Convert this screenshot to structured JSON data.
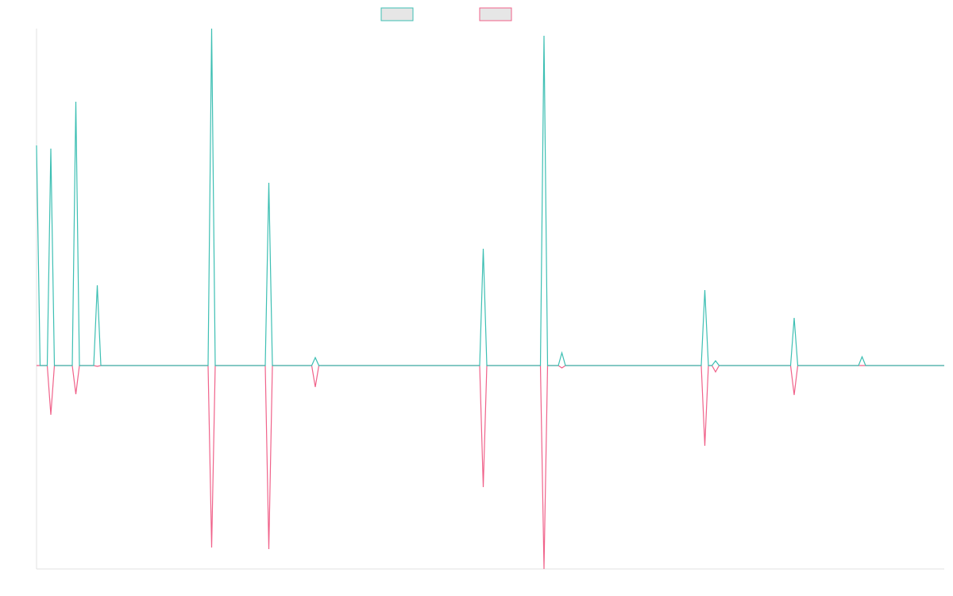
{
  "chart_data": {
    "type": "line",
    "ylim": [
      -256,
      424
    ],
    "series": [
      {
        "color": "#3dbfb3",
        "values": [
          277,
          0,
          0,
          0,
          273,
          0,
          0,
          0,
          0,
          0,
          0,
          332,
          0,
          0,
          0,
          0,
          0,
          101,
          0,
          0,
          0,
          0,
          0,
          0,
          0,
          0,
          0,
          0,
          0,
          0,
          0,
          0,
          0,
          0,
          0,
          0,
          0,
          0,
          0,
          0,
          0,
          0,
          0,
          0,
          0,
          0,
          0,
          0,
          0,
          424,
          0,
          0,
          0,
          0,
          0,
          0,
          0,
          0,
          0,
          0,
          0,
          0,
          0,
          0,
          0,
          230,
          0,
          0,
          0,
          0,
          0,
          0,
          0,
          0,
          0,
          0,
          0,
          0,
          10,
          0,
          0,
          0,
          0,
          0,
          0,
          0,
          0,
          0,
          0,
          0,
          0,
          0,
          0,
          0,
          0,
          0,
          0,
          0,
          0,
          0,
          0,
          0,
          0,
          0,
          0,
          0,
          0,
          0,
          0,
          0,
          0,
          0,
          0,
          0,
          0,
          0,
          0,
          0,
          0,
          0,
          0,
          0,
          0,
          0,
          0,
          147,
          0,
          0,
          0,
          0,
          0,
          0,
          0,
          0,
          0,
          0,
          0,
          0,
          0,
          0,
          0,
          0,
          415,
          0,
          0,
          0,
          0,
          16,
          0,
          0,
          0,
          0,
          0,
          0,
          0,
          0,
          0,
          0,
          0,
          0,
          0,
          0,
          0,
          0,
          0,
          0,
          0,
          0,
          0,
          0,
          0,
          0,
          0,
          0,
          0,
          0,
          0,
          0,
          0,
          0,
          0,
          0,
          0,
          0,
          0,
          0,
          0,
          95,
          0,
          0,
          6,
          0,
          0,
          0,
          0,
          0,
          0,
          0,
          0,
          0,
          0,
          0,
          0,
          0,
          0,
          0,
          0,
          0,
          0,
          0,
          0,
          0,
          60,
          0,
          0,
          0,
          0,
          0,
          0,
          0,
          0,
          0,
          0,
          0,
          0,
          0,
          0,
          0,
          0,
          0,
          0,
          11,
          0,
          0,
          0,
          0,
          0,
          0,
          0,
          0,
          0,
          0,
          0,
          0,
          0,
          0,
          0,
          0,
          0,
          0,
          0,
          0,
          0,
          0,
          0
        ]
      },
      {
        "color": "#f0628a",
        "values": [
          0,
          0,
          0,
          0,
          -62,
          0,
          0,
          0,
          0,
          0,
          0,
          -36,
          0,
          0,
          0,
          0,
          0,
          -1,
          0,
          0,
          0,
          0,
          0,
          0,
          0,
          0,
          0,
          0,
          0,
          0,
          0,
          0,
          0,
          0,
          0,
          0,
          0,
          0,
          0,
          0,
          0,
          0,
          0,
          0,
          0,
          0,
          0,
          0,
          0,
          -229,
          0,
          0,
          0,
          0,
          0,
          0,
          0,
          0,
          0,
          0,
          0,
          0,
          0,
          0,
          0,
          -231,
          0,
          0,
          0,
          0,
          0,
          0,
          0,
          0,
          0,
          0,
          0,
          0,
          -27,
          0,
          0,
          0,
          0,
          0,
          0,
          0,
          0,
          0,
          0,
          0,
          0,
          0,
          0,
          0,
          0,
          0,
          0,
          0,
          0,
          0,
          0,
          0,
          0,
          0,
          0,
          0,
          0,
          0,
          0,
          0,
          0,
          0,
          0,
          0,
          0,
          0,
          0,
          0,
          0,
          0,
          0,
          0,
          0,
          0,
          0,
          -153,
          0,
          0,
          0,
          0,
          0,
          0,
          0,
          0,
          0,
          0,
          0,
          0,
          0,
          0,
          0,
          0,
          -256,
          0,
          0,
          0,
          0,
          -3,
          0,
          0,
          0,
          0,
          0,
          0,
          0,
          0,
          0,
          0,
          0,
          0,
          0,
          0,
          0,
          0,
          0,
          0,
          0,
          0,
          0,
          0,
          0,
          0,
          0,
          0,
          0,
          0,
          0,
          0,
          0,
          0,
          0,
          0,
          0,
          0,
          0,
          0,
          0,
          -101,
          0,
          0,
          -8,
          0,
          0,
          0,
          0,
          0,
          0,
          0,
          0,
          0,
          0,
          0,
          0,
          0,
          0,
          0,
          0,
          0,
          0,
          0,
          0,
          0,
          -37,
          0,
          0,
          0,
          0,
          0,
          0,
          0,
          0,
          0,
          0,
          0,
          0,
          0,
          0,
          0,
          0,
          0,
          0,
          0,
          0,
          0,
          0,
          0,
          0,
          0,
          0,
          0,
          0,
          0,
          0,
          0,
          0,
          0,
          0,
          0,
          0,
          0,
          0,
          0,
          0,
          0,
          0
        ]
      }
    ]
  }
}
